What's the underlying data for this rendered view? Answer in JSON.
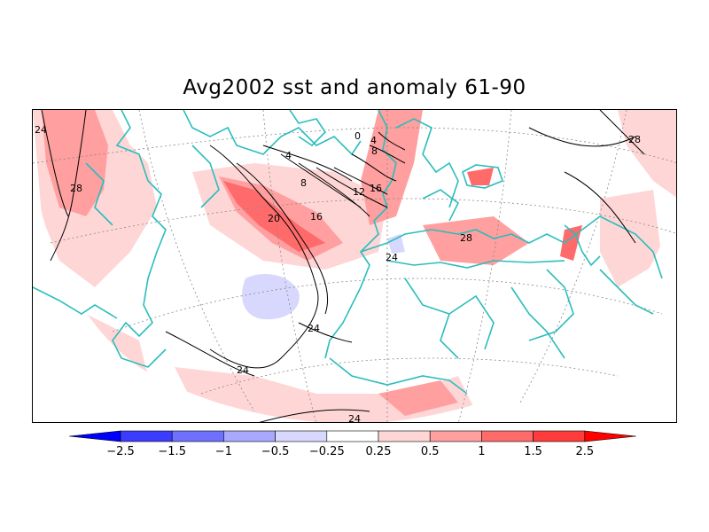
{
  "title": "Avg2002 sst and anomaly 61-90",
  "colors": {
    "coast": "#2bbdbd",
    "contour": "#000000",
    "grid": "#888888",
    "anom_pos_1": "#ffd6d6",
    "anom_pos_2": "#ff9f9f",
    "anom_pos_3": "#ff6b6b",
    "anom_pos_4": "#ff3b3b",
    "anom_pos_5": "#ff0000",
    "anom_neg_1": "#d8d8ff",
    "anom_neg_2": "#a8a8ff",
    "anom_neg_3": "#7070ff",
    "anom_neg_4": "#3c3cff",
    "anom_neg_5": "#0000ff"
  },
  "colorbar": {
    "colors": [
      "#0000ff",
      "#3c3cff",
      "#7070ff",
      "#a8a8ff",
      "#d8d8ff",
      "#ffffff",
      "#ffd6d6",
      "#ff9f9f",
      "#ff6b6b",
      "#ff3b3b",
      "#ff0000"
    ],
    "labels": [
      "−2.5",
      "−1.5",
      "−1",
      "−0.5",
      "−0.25",
      "0.25",
      "0.5",
      "1",
      "1.5",
      "2.5"
    ]
  },
  "contour_labels": [
    "24",
    "28",
    "4",
    "0",
    "4",
    "8",
    "8",
    "12",
    "16",
    "16",
    "20",
    "24",
    "24",
    "28",
    "28",
    "24",
    "24"
  ]
}
